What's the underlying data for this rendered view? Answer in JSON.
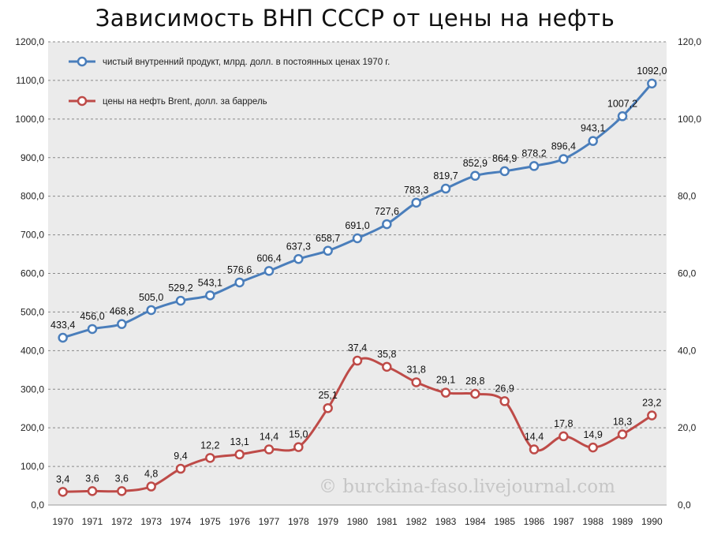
{
  "chart_data": {
    "type": "line",
    "title": "Зависимость ВНП СССР от цены на нефть",
    "x": [
      "1970",
      "1971",
      "1972",
      "1973",
      "1974",
      "1975",
      "1976",
      "1977",
      "1978",
      "1979",
      "1980",
      "1981",
      "1982",
      "1983",
      "1984",
      "1985",
      "1986",
      "1987",
      "1988",
      "1989",
      "1990"
    ],
    "series": [
      {
        "name": "чистый внутренний продукт, млрд. долл. в постоянных ценах 1970 г.",
        "axis": "left",
        "color": "#4a7ebb",
        "values": [
          433.4,
          456.0,
          468.8,
          505.0,
          529.2,
          543.1,
          576.6,
          606.4,
          637.3,
          658.7,
          691.0,
          727.6,
          783.3,
          819.7,
          852.9,
          864.9,
          878.2,
          896.4,
          943.1,
          1007.2,
          1092.0
        ],
        "labels": [
          "433,4",
          "456,0",
          "468,8",
          "505,0",
          "529,2",
          "543,1",
          "576,6",
          "606,4",
          "637,3",
          "658,7",
          "691,0",
          "727,6",
          "783,3",
          "819,7",
          "852,9",
          "864,9",
          "878,2",
          "896,4",
          "943,1",
          "1007,2",
          "1092,0"
        ]
      },
      {
        "name": "цены на нефть Brent, долл. за баррель",
        "axis": "right",
        "color": "#be4b48",
        "values": [
          3.4,
          3.6,
          3.6,
          4.8,
          9.4,
          12.2,
          13.1,
          14.4,
          15.0,
          25.1,
          37.4,
          35.8,
          31.8,
          29.1,
          28.8,
          26.9,
          14.4,
          17.8,
          14.9,
          18.3,
          23.2
        ],
        "labels": [
          "3,4",
          "3,6",
          "3,6",
          "4,8",
          "9,4",
          "12,2",
          "13,1",
          "14,4",
          "15,0",
          "25,1",
          "37,4",
          "35,8",
          "31,8",
          "29,1",
          "28,8",
          "26,9",
          "14,4",
          "17,8",
          "14,9",
          "18,3",
          "23,2"
        ]
      }
    ],
    "y_left": {
      "ylim": [
        0,
        1200
      ],
      "ticks": [
        0,
        100,
        200,
        300,
        400,
        500,
        600,
        700,
        800,
        900,
        1000,
        1100,
        1200
      ],
      "tick_labels": [
        "0,0",
        "100,0",
        "200,0",
        "300,0",
        "400,0",
        "500,0",
        "600,0",
        "700,0",
        "800,0",
        "900,0",
        "1000,0",
        "1100,0",
        "1200,0"
      ]
    },
    "y_right": {
      "ylim": [
        0,
        120
      ],
      "ticks": [
        0,
        20,
        40,
        60,
        80,
        100,
        120
      ],
      "tick_labels": [
        "0,0",
        "20,0",
        "40,0",
        "60,0",
        "80,0",
        "100,0",
        "120,0"
      ]
    },
    "grid": true,
    "legend_position": "top-left",
    "background": "#ebebeb"
  },
  "watermark": "© burckina-faso.livejournal.com"
}
